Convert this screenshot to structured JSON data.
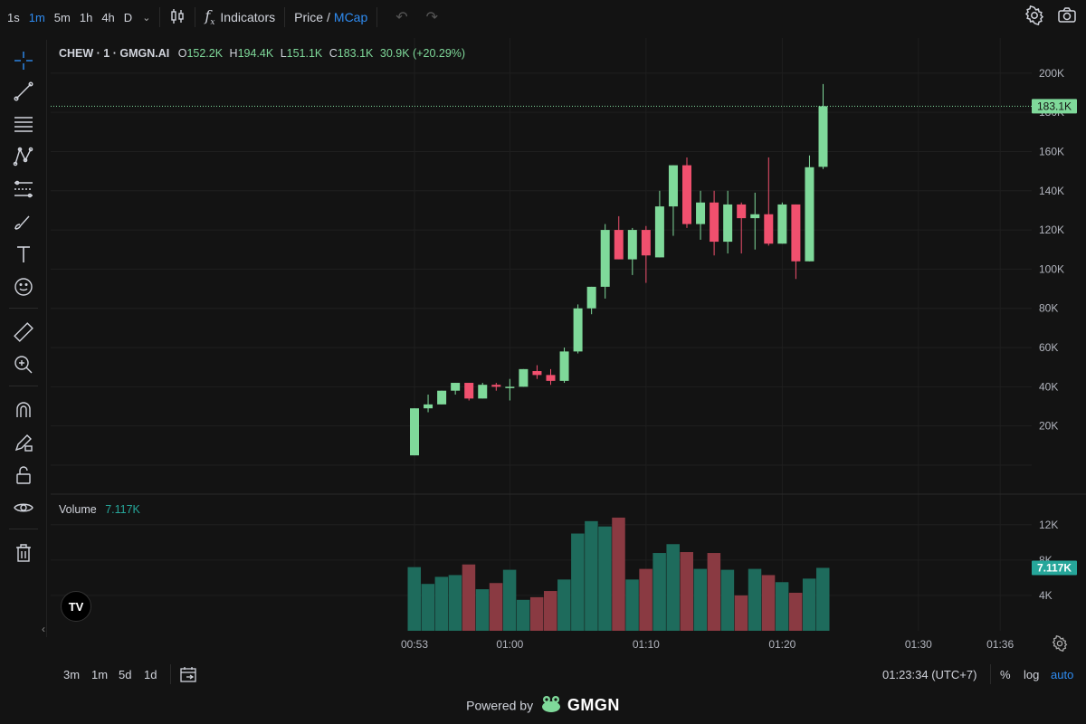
{
  "toolbar": {
    "timeframes": [
      "1s",
      "1m",
      "5m",
      "1h",
      "4h",
      "D"
    ],
    "active_timeframe": "1m",
    "indicators_label": "Indicators",
    "price_label": "Price",
    "price_sep": "/",
    "mcap_label": "MCap"
  },
  "legend": {
    "symbol": "CHEW · 1 · GMGN.AI",
    "o_label": "O",
    "o_value": "152.2K",
    "h_label": "H",
    "h_value": "194.4K",
    "l_label": "L",
    "l_value": "151.1K",
    "c_label": "C",
    "c_value": "183.1K",
    "change": "30.9K (+20.29%)"
  },
  "volume_legend": {
    "label": "Volume",
    "value": "7.117K"
  },
  "price_axis": {
    "ticks": [
      "200K",
      "180K",
      "160K",
      "140K",
      "120K",
      "100K",
      "80K",
      "60K",
      "40K",
      "20K"
    ],
    "last_price_label": "183.1K"
  },
  "volume_axis": {
    "ticks": [
      "12K",
      "8K",
      "4K"
    ],
    "last_volume_label": "7.117K"
  },
  "time_axis": {
    "ticks": [
      {
        "label": "00:53",
        "t": 0
      },
      {
        "label": "01:00",
        "t": 7
      },
      {
        "label": "01:10",
        "t": 17
      },
      {
        "label": "01:20",
        "t": 27
      },
      {
        "label": "01:30",
        "t": 37
      },
      {
        "label": "01:36",
        "t": 43
      }
    ]
  },
  "bottombar": {
    "ranges": [
      "3m",
      "1m",
      "5d",
      "1d"
    ],
    "clock": "01:23:34 (UTC+7)",
    "percent_label": "%",
    "log_label": "log",
    "auto_label": "auto"
  },
  "footer": {
    "powered_label": "Powered by",
    "brand": "GMGN"
  },
  "colors": {
    "up": "#7fd99a",
    "down": "#f0506e",
    "vol_up": "#1e6b5c",
    "vol_down": "#8a3a42",
    "accent": "#2f8cf2"
  },
  "chart_data": {
    "type": "candlestick",
    "ylim": [
      0,
      210000
    ],
    "volume_ylim": [
      0,
      14000
    ],
    "candles": [
      {
        "t": 0,
        "o": 5000,
        "h": 29000,
        "l": 5000,
        "c": 29000,
        "v": 7200
      },
      {
        "t": 1,
        "o": 29000,
        "h": 36000,
        "l": 27000,
        "c": 31000,
        "v": 5300
      },
      {
        "t": 2,
        "o": 31000,
        "h": 38000,
        "l": 31000,
        "c": 38000,
        "v": 6100
      },
      {
        "t": 3,
        "o": 38000,
        "h": 42000,
        "l": 36000,
        "c": 42000,
        "v": 6300
      },
      {
        "t": 4,
        "o": 42000,
        "h": 42000,
        "l": 33000,
        "c": 34000,
        "v": 7500
      },
      {
        "t": 5,
        "o": 34000,
        "h": 42000,
        "l": 34000,
        "c": 41000,
        "v": 4700
      },
      {
        "t": 6,
        "o": 41000,
        "h": 42000,
        "l": 38000,
        "c": 40000,
        "v": 5400
      },
      {
        "t": 7,
        "o": 40000,
        "h": 44000,
        "l": 33000,
        "c": 40000,
        "v": 6900
      },
      {
        "t": 8,
        "o": 40000,
        "h": 49000,
        "l": 40000,
        "c": 49000,
        "v": 3500
      },
      {
        "t": 9,
        "o": 48000,
        "h": 51000,
        "l": 44000,
        "c": 46000,
        "v": 3800
      },
      {
        "t": 10,
        "o": 46000,
        "h": 49000,
        "l": 41000,
        "c": 43000,
        "v": 4500
      },
      {
        "t": 11,
        "o": 43000,
        "h": 60000,
        "l": 42000,
        "c": 58000,
        "v": 5800
      },
      {
        "t": 12,
        "o": 58000,
        "h": 82000,
        "l": 57000,
        "c": 80000,
        "v": 11000
      },
      {
        "t": 13,
        "o": 80000,
        "h": 91000,
        "l": 77000,
        "c": 91000,
        "v": 12400
      },
      {
        "t": 14,
        "o": 91000,
        "h": 123000,
        "l": 85000,
        "c": 120000,
        "v": 11800
      },
      {
        "t": 15,
        "o": 120000,
        "h": 127000,
        "l": 105000,
        "c": 105000,
        "v": 12800
      },
      {
        "t": 16,
        "o": 105000,
        "h": 121000,
        "l": 97000,
        "c": 120000,
        "v": 5800
      },
      {
        "t": 17,
        "o": 120000,
        "h": 122000,
        "l": 93000,
        "c": 107000,
        "v": 7000
      },
      {
        "t": 18,
        "o": 106000,
        "h": 140000,
        "l": 106000,
        "c": 132000,
        "v": 8800
      },
      {
        "t": 19,
        "o": 132000,
        "h": 153000,
        "l": 117000,
        "c": 153000,
        "v": 9800
      },
      {
        "t": 20,
        "o": 153000,
        "h": 157000,
        "l": 121000,
        "c": 123000,
        "v": 8900
      },
      {
        "t": 21,
        "o": 123000,
        "h": 140000,
        "l": 115000,
        "c": 134000,
        "v": 7000
      },
      {
        "t": 22,
        "o": 134000,
        "h": 140000,
        "l": 107000,
        "c": 114000,
        "v": 8800
      },
      {
        "t": 23,
        "o": 114000,
        "h": 140000,
        "l": 108000,
        "c": 133000,
        "v": 6900
      },
      {
        "t": 24,
        "o": 133000,
        "h": 134000,
        "l": 108000,
        "c": 126000,
        "v": 4000
      },
      {
        "t": 25,
        "o": 126000,
        "h": 139000,
        "l": 110000,
        "c": 128000,
        "v": 7000
      },
      {
        "t": 26,
        "o": 128000,
        "h": 157000,
        "l": 112000,
        "c": 113000,
        "v": 6300
      },
      {
        "t": 27,
        "o": 113000,
        "h": 134000,
        "l": 113000,
        "c": 133000,
        "v": 5500
      },
      {
        "t": 28,
        "o": 133000,
        "h": 133000,
        "l": 95000,
        "c": 104000,
        "v": 4300
      },
      {
        "t": 29,
        "o": 104000,
        "h": 158000,
        "l": 104000,
        "c": 152000,
        "v": 5900
      },
      {
        "t": 30,
        "o": 152200,
        "h": 194400,
        "l": 151100,
        "c": 183100,
        "v": 7117
      }
    ]
  }
}
